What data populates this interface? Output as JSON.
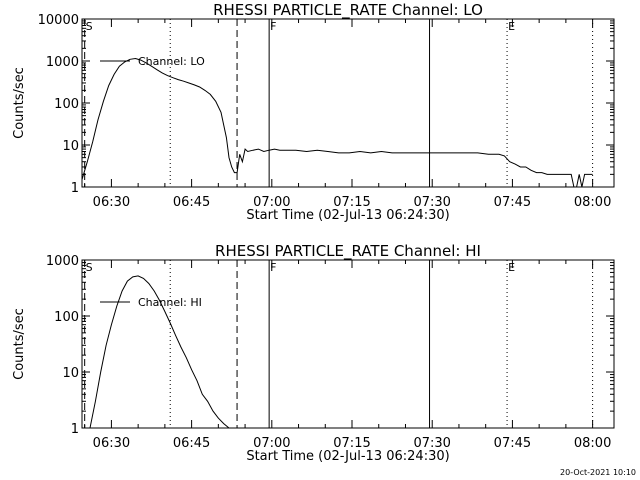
{
  "chart_data": [
    {
      "type": "line",
      "title": "RHESSI PARTICLE_RATE Channel: LO",
      "xlabel": "Start Time (02-Jul-13 06:24:30)",
      "ylabel": "Counts/sec",
      "y_scale": "log",
      "ylim": [
        1,
        10000
      ],
      "xlim": [
        "06:24:30",
        "08:04:00"
      ],
      "x_ticks": [
        "06:30",
        "06:45",
        "07:00",
        "07:15",
        "07:30",
        "07:45",
        "08:00"
      ],
      "y_ticks": [
        "1",
        "10",
        "100",
        "1000",
        "10000"
      ],
      "legend": {
        "placement": "top-left",
        "entries": [
          "Channel: LO"
        ]
      },
      "markers": [
        {
          "label": "S",
          "time": "06:25:00",
          "style": "dashed"
        },
        {
          "label": "",
          "time": "06:41:00",
          "style": "dotted"
        },
        {
          "label": "",
          "time": "06:53:30",
          "style": "dashed"
        },
        {
          "label": "F",
          "time": "06:59:30",
          "style": "solid"
        },
        {
          "label": "",
          "time": "07:29:30",
          "style": "solid"
        },
        {
          "label": "E",
          "time": "07:44:00",
          "style": "dotted"
        },
        {
          "label": "",
          "time": "08:00:00",
          "style": "dotted"
        }
      ],
      "series": [
        {
          "name": "Channel: LO",
          "x": [
            "06:24:30",
            "06:25:30",
            "06:26:30",
            "06:27:30",
            "06:28:30",
            "06:29:30",
            "06:30:30",
            "06:31:30",
            "06:32:30",
            "06:33:30",
            "06:34:30",
            "06:35:30",
            "06:36:30",
            "06:37:30",
            "06:38:30",
            "06:39:30",
            "06:40:30",
            "06:41:30",
            "06:42:30",
            "06:43:30",
            "06:44:30",
            "06:45:30",
            "06:46:30",
            "06:47:30",
            "06:48:30",
            "06:49:30",
            "06:50:30",
            "06:51:00",
            "06:51:30",
            "06:52:00",
            "06:52:30",
            "06:53:00",
            "06:53:30",
            "06:54:00",
            "06:54:30",
            "06:55:00",
            "06:55:30",
            "06:56:30",
            "06:57:30",
            "06:58:30",
            "06:59:30",
            "07:00:30",
            "07:01:30",
            "07:02:30",
            "07:04:30",
            "07:06:30",
            "07:08:30",
            "07:10:30",
            "07:12:30",
            "07:14:30",
            "07:16:30",
            "07:18:30",
            "07:20:30",
            "07:22:30",
            "07:24:30",
            "07:26:30",
            "07:28:30",
            "07:30:30",
            "07:32:30",
            "07:34:30",
            "07:36:30",
            "07:38:30",
            "07:40:30",
            "07:42:30",
            "07:43:30",
            "07:44:30",
            "07:45:30",
            "07:46:30",
            "07:47:30",
            "07:48:30",
            "07:49:30",
            "07:50:30",
            "07:51:30",
            "07:52:30",
            "07:53:30",
            "07:54:30",
            "07:55:00",
            "07:55:30",
            "07:56:00",
            "07:56:30",
            "07:57:00",
            "07:57:30",
            "07:58:00",
            "07:58:30",
            "07:59:00",
            "08:00:00"
          ],
          "y": [
            1.5,
            4,
            12,
            40,
            110,
            260,
            480,
            750,
            950,
            1100,
            1150,
            1050,
            900,
            750,
            620,
            520,
            450,
            400,
            360,
            330,
            300,
            270,
            240,
            200,
            160,
            110,
            60,
            30,
            15,
            5,
            3,
            2.2,
            2.2,
            6,
            4,
            8,
            7,
            7.5,
            8,
            7,
            7.5,
            8,
            7.5,
            7.5,
            7.5,
            7,
            7.5,
            7,
            6.5,
            6.5,
            7,
            6.5,
            7,
            6.5,
            6.5,
            6.5,
            6.5,
            6.5,
            6.5,
            6.5,
            6.5,
            6.5,
            6,
            6,
            5.5,
            4,
            3.5,
            3,
            3,
            2.5,
            2.2,
            2.2,
            2,
            2,
            2,
            2,
            2,
            2,
            2,
            1,
            1,
            2,
            1,
            2,
            2,
            2
          ]
        }
      ]
    },
    {
      "type": "line",
      "title": "RHESSI PARTICLE_RATE Channel: HI",
      "xlabel": "Start Time (02-Jul-13 06:24:30)",
      "ylabel": "Counts/sec",
      "y_scale": "log",
      "ylim": [
        1,
        1000
      ],
      "xlim": [
        "06:24:30",
        "08:04:00"
      ],
      "x_ticks": [
        "06:30",
        "06:45",
        "07:00",
        "07:15",
        "07:30",
        "07:45",
        "08:00"
      ],
      "y_ticks": [
        "1",
        "10",
        "100",
        "1000"
      ],
      "legend": {
        "placement": "top-left",
        "entries": [
          "Channel: HI"
        ]
      },
      "markers": [
        {
          "label": "S",
          "time": "06:25:00",
          "style": "dashed"
        },
        {
          "label": "",
          "time": "06:41:00",
          "style": "dotted"
        },
        {
          "label": "",
          "time": "06:53:30",
          "style": "dashed"
        },
        {
          "label": "F",
          "time": "06:59:30",
          "style": "solid"
        },
        {
          "label": "",
          "time": "07:29:30",
          "style": "solid"
        },
        {
          "label": "E",
          "time": "07:44:00",
          "style": "dotted"
        },
        {
          "label": "",
          "time": "08:00:00",
          "style": "dotted"
        }
      ],
      "series": [
        {
          "name": "Channel: HI",
          "x": [
            "06:26:00",
            "06:27:00",
            "06:28:00",
            "06:29:00",
            "06:30:00",
            "06:31:00",
            "06:32:00",
            "06:33:00",
            "06:34:00",
            "06:35:00",
            "06:36:00",
            "06:37:00",
            "06:38:00",
            "06:39:00",
            "06:40:00",
            "06:41:00",
            "06:42:00",
            "06:43:00",
            "06:44:00",
            "06:45:00",
            "06:46:00",
            "06:47:00",
            "06:48:00",
            "06:49:00",
            "06:50:00",
            "06:51:00",
            "06:52:00"
          ],
          "y": [
            1,
            3,
            10,
            30,
            70,
            150,
            280,
            420,
            500,
            520,
            470,
            380,
            280,
            190,
            120,
            75,
            45,
            28,
            18,
            11,
            7,
            4,
            3,
            2,
            1.5,
            1.2,
            1
          ]
        }
      ]
    }
  ],
  "timestamp": "20-Oct-2021 10:10"
}
